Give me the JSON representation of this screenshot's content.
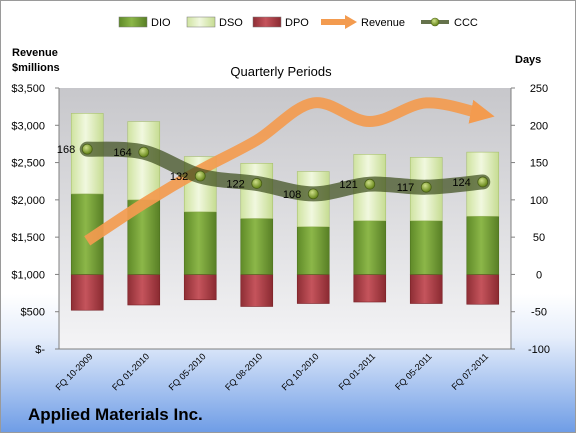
{
  "chart_data": {
    "type": "bar",
    "title": "Quarterly Periods",
    "company": "Applied Materials Inc.",
    "left_axis_label": [
      "Revenue",
      "$millions"
    ],
    "right_axis_label": "Days",
    "left_axis": {
      "range": [
        0,
        3500
      ],
      "step": 500,
      "ticks": [
        "$-",
        "$500",
        "$1,000",
        "$1,500",
        "$2,000",
        "$2,500",
        "$3,000",
        "$3,500"
      ]
    },
    "right_axis": {
      "range": [
        -100,
        250
      ],
      "step": 50,
      "ticks": [
        "-100",
        "-50",
        "0",
        "50",
        "100",
        "150",
        "200",
        "250"
      ]
    },
    "categories": [
      "FQ 10-2009",
      "FQ 01-2010",
      "FQ 05-2010",
      "FQ 08-2010",
      "FQ 10-2010",
      "FQ 01-2011",
      "FQ 05-2011",
      "FQ 07-2011"
    ],
    "legend": {
      "position": "top",
      "items": [
        {
          "name": "DIO",
          "color": "#7aa23a"
        },
        {
          "name": "DSO",
          "color": "#e3f0c6"
        },
        {
          "name": "DPO",
          "color": "#b5424a"
        },
        {
          "name": "Revenue",
          "color": "#f39b4f"
        },
        {
          "name": "CCC",
          "color": "#5a6b2c"
        }
      ]
    },
    "series": [
      {
        "name": "DIO",
        "axis": "right",
        "values": [
          108,
          100,
          84,
          75,
          64,
          72,
          72,
          78
        ]
      },
      {
        "name": "DSO",
        "axis": "right",
        "values": [
          108,
          105,
          74,
          74,
          74,
          89,
          85,
          86
        ]
      },
      {
        "name": "DPO",
        "axis": "right",
        "values": [
          -48,
          -41,
          -34,
          -43,
          -39,
          -37,
          -39,
          -40
        ]
      },
      {
        "name": "Revenue",
        "axis": "left",
        "values": [
          1450,
          1950,
          2400,
          2800,
          3300,
          3050,
          3300,
          3150
        ]
      },
      {
        "name": "CCC",
        "axis": "right",
        "values": [
          168,
          164,
          132,
          122,
          108,
          121,
          117,
          124
        ],
        "data_labels": [
          "168",
          "164",
          "132",
          "122",
          "108",
          "121",
          "117",
          "124"
        ]
      }
    ],
    "grid": false
  }
}
